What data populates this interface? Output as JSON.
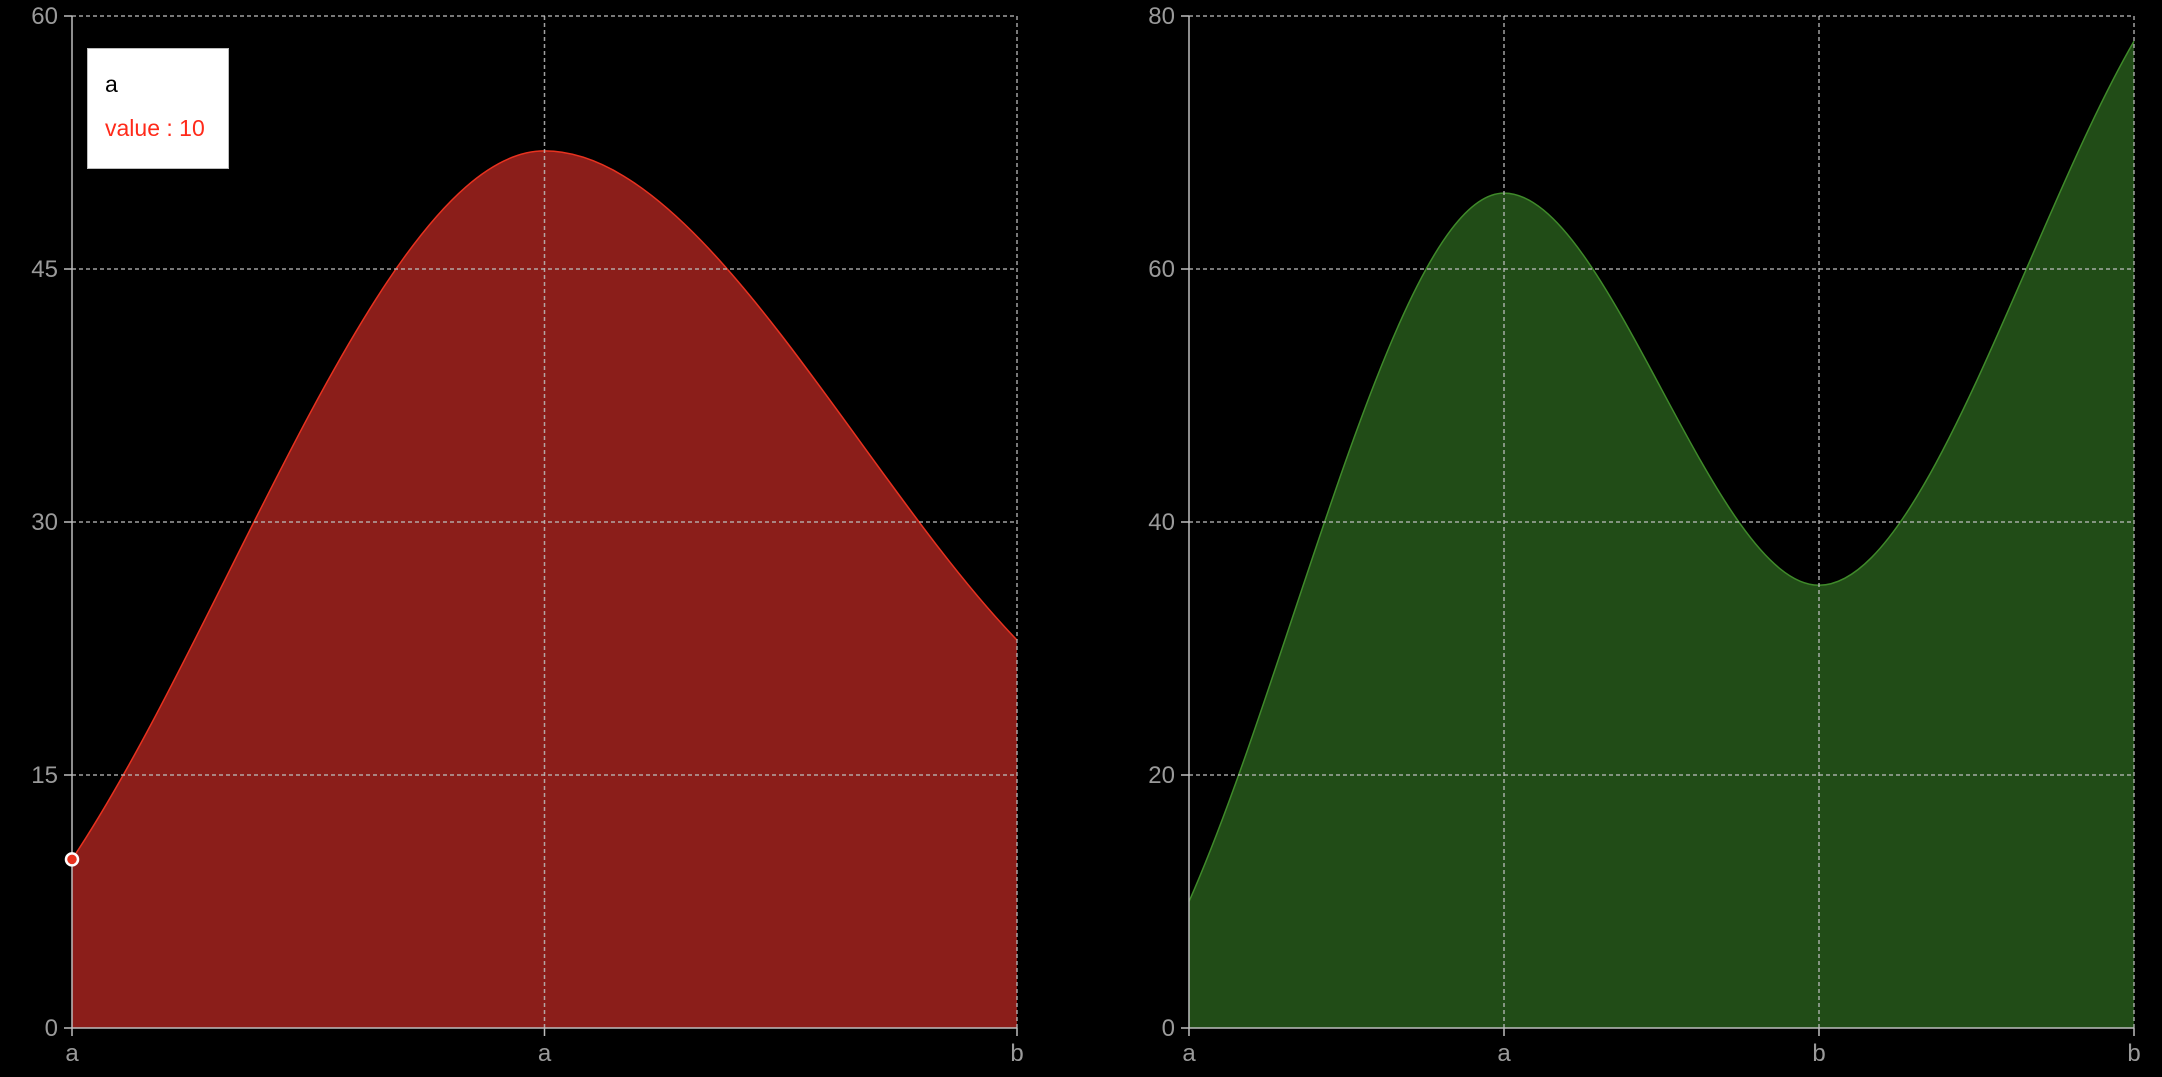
{
  "chart_data": [
    {
      "type": "area",
      "x": [
        "a",
        "a",
        "b"
      ],
      "series": [
        {
          "values": [
            10,
            52,
            23
          ],
          "color": "#8b1e1a",
          "stroke": "#e8321f"
        }
      ],
      "ylim": [
        0,
        60
      ],
      "yticks": [
        0,
        15,
        30,
        45,
        60
      ],
      "grid": true,
      "tooltip": {
        "title": "a",
        "value_text": "value : 10",
        "active_index": 0,
        "value_color": "#ff2a1a"
      }
    },
    {
      "type": "area",
      "x": [
        "a",
        "a",
        "b",
        "b"
      ],
      "series": [
        {
          "values": [
            10,
            66,
            35,
            78
          ],
          "color": "#214c17",
          "stroke": "#3f8a2a"
        }
      ],
      "ylim": [
        0,
        80
      ],
      "yticks": [
        0,
        20,
        40,
        60,
        80
      ],
      "grid": true
    }
  ],
  "colors": {
    "background": "#000000",
    "grid": "#bdbdbd",
    "axis": "#bdbdbd",
    "tick_text": "#9a9a9a"
  }
}
